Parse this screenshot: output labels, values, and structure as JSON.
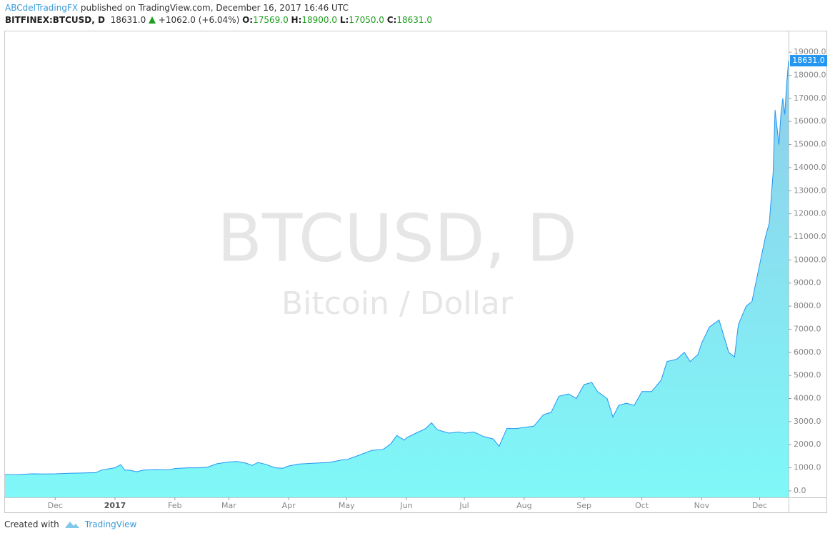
{
  "header": {
    "author": "ABCdelTradingFX",
    "published": "published on TradingView.com, December 16, 2017 16:46 UTC",
    "symbol": "BITFINEX:BTCUSD, D",
    "price": "18631.0",
    "change": "+1062.0 (+6.04%)",
    "ohlc": [
      {
        "key": "O:",
        "value": "17569.0"
      },
      {
        "key": "H:",
        "value": "18900.0"
      },
      {
        "key": "L:",
        "value": "17050.0"
      },
      {
        "key": "C:",
        "value": "18631.0"
      }
    ]
  },
  "chart_data": {
    "type": "area",
    "watermark": "BTCUSD, D",
    "watermark_sub": "Bitcoin / Dollar",
    "x": [
      0,
      7,
      14,
      21,
      26,
      33,
      40,
      47,
      50,
      54,
      57,
      60,
      62,
      65,
      68,
      72,
      78,
      85,
      88,
      95,
      100,
      105,
      110,
      116,
      120,
      125,
      128,
      131,
      135,
      140,
      144,
      147,
      152,
      160,
      168,
      175,
      177,
      182,
      190,
      196,
      200,
      203,
      207,
      208,
      213,
      218,
      221,
      224,
      230,
      235,
      238,
      243,
      248,
      253,
      256,
      260,
      265,
      269,
      274,
      279,
      283,
      287,
      292,
      296,
      300,
      304,
      307,
      312,
      315,
      318,
      322,
      326,
      330,
      335,
      340,
      343,
      348,
      352,
      355,
      359,
      361,
      365,
      370,
      375,
      378,
      380,
      384,
      387,
      391,
      394,
      396,
      398,
      399,
      401,
      402,
      403,
      404,
      405,
      406
    ],
    "values": [
      700,
      705,
      740,
      735,
      740,
      765,
      775,
      790,
      900,
      960,
      1000,
      1140,
      900,
      890,
      830,
      900,
      920,
      910,
      970,
      1000,
      1000,
      1030,
      1180,
      1250,
      1270,
      1200,
      1100,
      1230,
      1150,
      1000,
      980,
      1080,
      1160,
      1200,
      1230,
      1350,
      1350,
      1500,
      1750,
      1800,
      2050,
      2400,
      2200,
      2300,
      2500,
      2700,
      2950,
      2650,
      2500,
      2550,
      2500,
      2550,
      2350,
      2250,
      1930,
      2700,
      2700,
      2750,
      2800,
      3300,
      3400,
      4100,
      4200,
      4000,
      4600,
      4700,
      4300,
      4000,
      3200,
      3700,
      3800,
      3700,
      4300,
      4300,
      4800,
      5600,
      5700,
      6000,
      5600,
      5900,
      6400,
      7100,
      7400,
      6000,
      5800,
      7200,
      8000,
      8200,
      9800,
      11000,
      11600,
      13800,
      16500,
      15000,
      16300,
      17000,
      16300,
      17600,
      18631
    ],
    "xlim": [
      0,
      406
    ],
    "xticks": [
      {
        "value": 26,
        "label": "Dec"
      },
      {
        "value": 57,
        "label": "2017"
      },
      {
        "value": 88,
        "label": "Feb"
      },
      {
        "value": 116,
        "label": "Mar"
      },
      {
        "value": 147,
        "label": "Apr"
      },
      {
        "value": 177,
        "label": "May"
      },
      {
        "value": 208,
        "label": "Jun"
      },
      {
        "value": 238,
        "label": "Jul"
      },
      {
        "value": 269,
        "label": "Aug"
      },
      {
        "value": 300,
        "label": "Sep"
      },
      {
        "value": 330,
        "label": "Oct"
      },
      {
        "value": 361,
        "label": "Nov"
      },
      {
        "value": 391,
        "label": "Dec"
      }
    ],
    "ylim": [
      -280,
      19900
    ],
    "yticks": [
      {
        "value": 0,
        "label": "0.0"
      },
      {
        "value": 1000,
        "label": "1000.0"
      },
      {
        "value": 2000,
        "label": "2000.0"
      },
      {
        "value": 3000,
        "label": "3000.0"
      },
      {
        "value": 4000,
        "label": "4000.0"
      },
      {
        "value": 5000,
        "label": "5000.0"
      },
      {
        "value": 6000,
        "label": "6000.0"
      },
      {
        "value": 7000,
        "label": "7000.0"
      },
      {
        "value": 8000,
        "label": "8000.0"
      },
      {
        "value": 9000,
        "label": "9000.0"
      },
      {
        "value": 10000,
        "label": "10000.0"
      },
      {
        "value": 11000,
        "label": "11000.0"
      },
      {
        "value": 12000,
        "label": "12000.0"
      },
      {
        "value": 13000,
        "label": "13000.0"
      },
      {
        "value": 14000,
        "label": "14000.0"
      },
      {
        "value": 15000,
        "label": "15000.0"
      },
      {
        "value": 16000,
        "label": "16000.0"
      },
      {
        "value": 17000,
        "label": "17000.0"
      },
      {
        "value": 18000,
        "label": "18000.0"
      },
      {
        "value": 19000,
        "label": "19000.0"
      }
    ],
    "color": "#2196f3",
    "fill_top": "#90cbe8",
    "fill_bottom": "#7ff8f8"
  },
  "footer": {
    "created": "Created with",
    "brand": "TradingView"
  }
}
